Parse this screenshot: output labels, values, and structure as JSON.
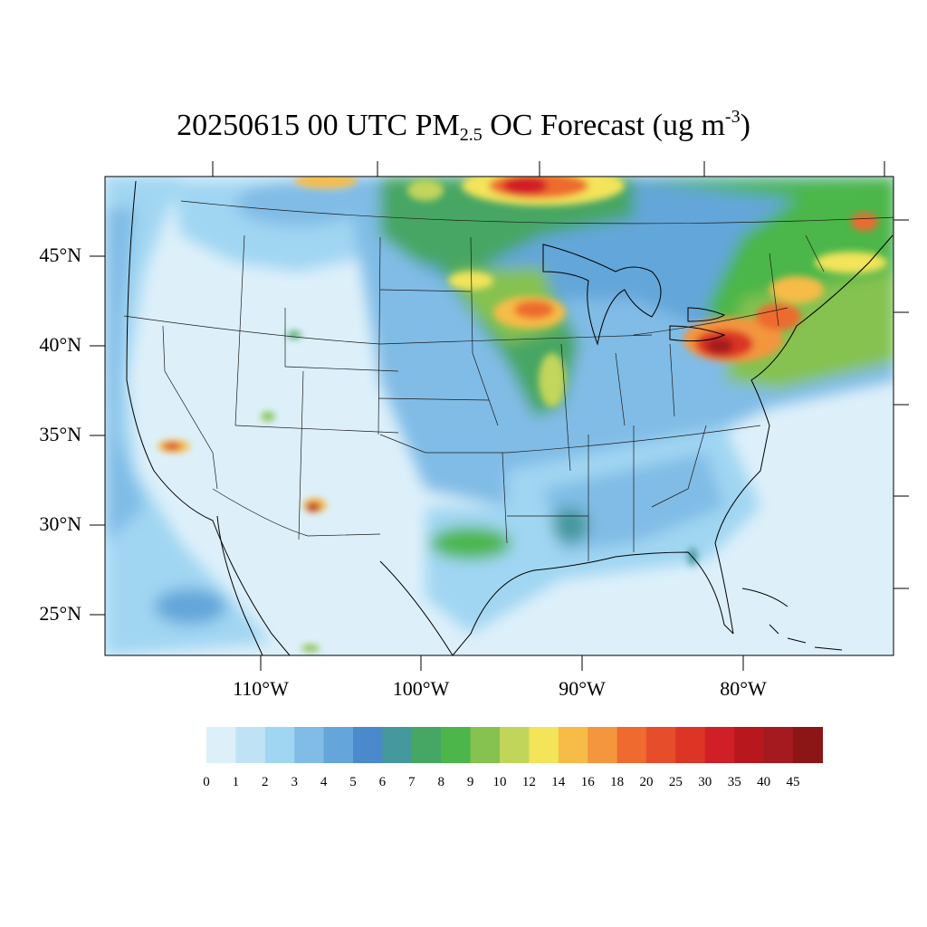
{
  "title": {
    "prefix": "20250615 00 UTC PM",
    "subscript": "2.5",
    "middle": " OC Forecast (ug m",
    "superscript": "-3",
    "suffix": ")"
  },
  "axes": {
    "lat_labels": [
      "45°N",
      "40°N",
      "35°N",
      "30°N",
      "25°N"
    ],
    "lon_labels": [
      "110°W",
      "100°W",
      "90°W",
      "80°W"
    ]
  },
  "colorbar": {
    "labels": [
      "0",
      "1",
      "2",
      "3",
      "4",
      "5",
      "6",
      "7",
      "8",
      "9",
      "10",
      "12",
      "14",
      "16",
      "18",
      "20",
      "25",
      "30",
      "35",
      "40",
      "45"
    ],
    "colors": [
      "#ddf0fa",
      "#bfe3f5",
      "#a0d6f2",
      "#80bce6",
      "#64a6d9",
      "#4a89cb",
      "#45999c",
      "#46a664",
      "#4cb64a",
      "#85c24f",
      "#c2d55b",
      "#f3e45a",
      "#f6bc47",
      "#f3963e",
      "#ee6a2f",
      "#e64d2a",
      "#dc3526",
      "#d11f27",
      "#b8171d",
      "#a41a1e",
      "#8c1515"
    ]
  },
  "map": {
    "ocean_color": "#ddf0fa",
    "plumes": [
      {
        "name": "southern-california-fire",
        "level": 16
      },
      {
        "name": "utah-fire",
        "level": 10
      },
      {
        "name": "new-mexico-fire",
        "level": 35
      },
      {
        "name": "pennsylvania-plume",
        "level": 35
      },
      {
        "name": "iowa-wisconsin-plume",
        "level": 20
      },
      {
        "name": "ontario-smoke",
        "level": 30
      }
    ]
  }
}
